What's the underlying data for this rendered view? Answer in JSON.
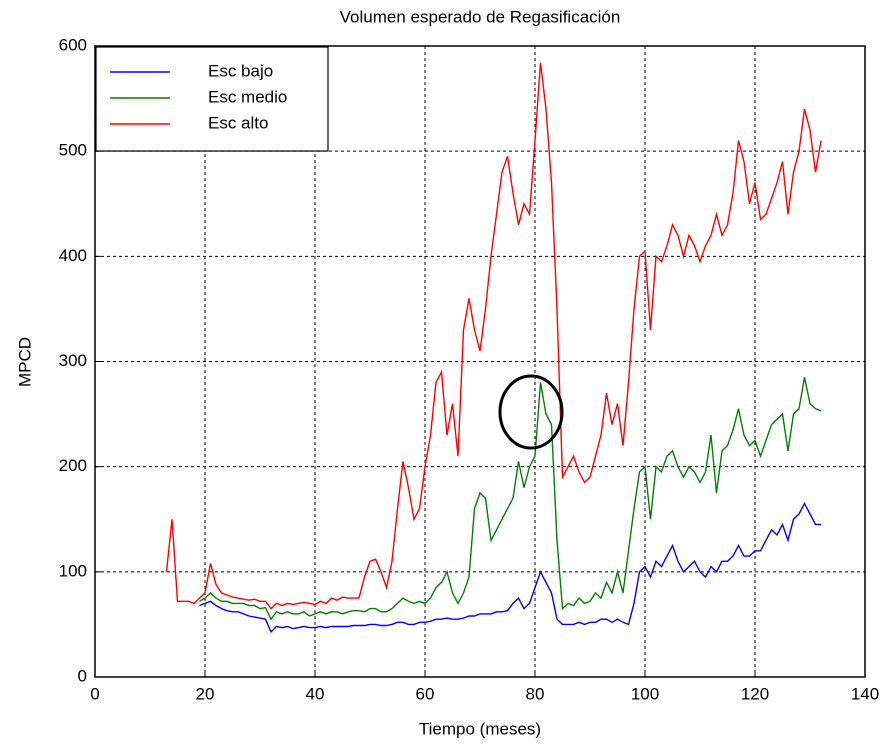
{
  "chart_data": {
    "type": "line",
    "title": "Volumen esperado de Regasificación",
    "x_label": "Tiempo (meses)",
    "y_label": "MPCD",
    "xlim": [
      0,
      140
    ],
    "xticks": [
      0,
      20,
      40,
      60,
      80,
      100,
      120,
      140
    ],
    "ylim": [
      0,
      600
    ],
    "yticks": [
      0,
      100,
      200,
      300,
      400,
      500,
      600
    ],
    "grid": true,
    "legend": "upper left",
    "x": [
      13,
      14,
      15,
      16,
      17,
      18,
      19,
      20,
      21,
      22,
      23,
      24,
      25,
      26,
      27,
      28,
      29,
      30,
      31,
      32,
      33,
      34,
      35,
      36,
      37,
      38,
      39,
      40,
      41,
      42,
      43,
      44,
      45,
      46,
      47,
      48,
      49,
      50,
      51,
      52,
      53,
      54,
      55,
      56,
      57,
      58,
      59,
      60,
      61,
      62,
      63,
      64,
      65,
      66,
      67,
      68,
      69,
      70,
      71,
      72,
      73,
      74,
      75,
      76,
      77,
      78,
      79,
      80,
      81,
      82,
      83,
      84,
      85,
      86,
      87,
      88,
      89,
      90,
      91,
      92,
      93,
      94,
      95,
      96,
      97,
      98,
      99,
      100,
      101,
      102,
      103,
      104,
      105,
      106,
      107,
      108,
      109,
      110,
      111,
      112,
      113,
      114,
      115,
      116,
      117,
      118,
      119,
      120,
      121,
      122,
      123,
      124,
      125,
      126,
      127,
      128,
      129,
      130,
      131,
      132
    ],
    "series": [
      {
        "name": "Esc bajo",
        "color": "#0000ff",
        "values": [
          null,
          null,
          null,
          null,
          null,
          null,
          68,
          70,
          72,
          68,
          65,
          63,
          62,
          62,
          60,
          58,
          57,
          56,
          55,
          43,
          48,
          47,
          48,
          46,
          47,
          48,
          47,
          47,
          48,
          47,
          48,
          48,
          48,
          48,
          49,
          49,
          49,
          50,
          50,
          49,
          49,
          50,
          52,
          52,
          50,
          50,
          52,
          52,
          53,
          55,
          55,
          56,
          55,
          55,
          56,
          58,
          58,
          60,
          60,
          60,
          62,
          62,
          63,
          70,
          75,
          65,
          70,
          85,
          100,
          90,
          80,
          55,
          50,
          50,
          50,
          52,
          50,
          52,
          52,
          55,
          55,
          52,
          55,
          52,
          50,
          70,
          100,
          105,
          95,
          110,
          105,
          115,
          125,
          110,
          100,
          105,
          110,
          100,
          95,
          105,
          100,
          110,
          110,
          115,
          125,
          115,
          115,
          120,
          120,
          130,
          140,
          135,
          145,
          130,
          150,
          155,
          165,
          155,
          145,
          145
        ]
      },
      {
        "name": "Esc medio",
        "color": "#008000",
        "values": [
          null,
          null,
          null,
          null,
          null,
          null,
          72,
          75,
          80,
          75,
          72,
          72,
          70,
          70,
          70,
          68,
          68,
          65,
          66,
          55,
          62,
          60,
          62,
          60,
          60,
          62,
          58,
          60,
          62,
          60,
          62,
          62,
          60,
          62,
          63,
          63,
          62,
          65,
          65,
          62,
          62,
          65,
          70,
          75,
          72,
          70,
          72,
          70,
          75,
          85,
          90,
          100,
          80,
          70,
          80,
          95,
          160,
          175,
          170,
          130,
          140,
          150,
          160,
          170,
          205,
          180,
          200,
          210,
          280,
          250,
          240,
          130,
          65,
          70,
          68,
          75,
          70,
          72,
          80,
          75,
          90,
          80,
          100,
          80,
          120,
          160,
          195,
          200,
          150,
          200,
          195,
          210,
          215,
          200,
          190,
          200,
          195,
          185,
          195,
          230,
          175,
          215,
          220,
          235,
          255,
          230,
          220,
          225,
          210,
          225,
          240,
          245,
          250,
          215,
          250,
          255,
          285,
          260,
          255,
          253
        ]
      },
      {
        "name": "Esc alto",
        "color": "#ff0000",
        "values": [
          100,
          150,
          72,
          72,
          72,
          70,
          75,
          80,
          108,
          88,
          80,
          78,
          76,
          75,
          74,
          73,
          74,
          72,
          72,
          65,
          70,
          68,
          70,
          69,
          70,
          71,
          70,
          69,
          72,
          70,
          75,
          73,
          76,
          75,
          75,
          75,
          95,
          110,
          112,
          100,
          85,
          110,
          160,
          205,
          180,
          150,
          160,
          200,
          230,
          280,
          290,
          230,
          260,
          210,
          330,
          360,
          330,
          310,
          350,
          400,
          440,
          480,
          495,
          460,
          430,
          450,
          440,
          510,
          584,
          540,
          470,
          350,
          190,
          200,
          210,
          195,
          185,
          190,
          210,
          230,
          270,
          240,
          260,
          220,
          280,
          350,
          400,
          405,
          330,
          400,
          395,
          410,
          430,
          420,
          400,
          420,
          410,
          395,
          410,
          420,
          440,
          420,
          430,
          460,
          510,
          490,
          450,
          470,
          435,
          440,
          455,
          470,
          490,
          440,
          480,
          500,
          540,
          520,
          480,
          510
        ]
      }
    ]
  }
}
